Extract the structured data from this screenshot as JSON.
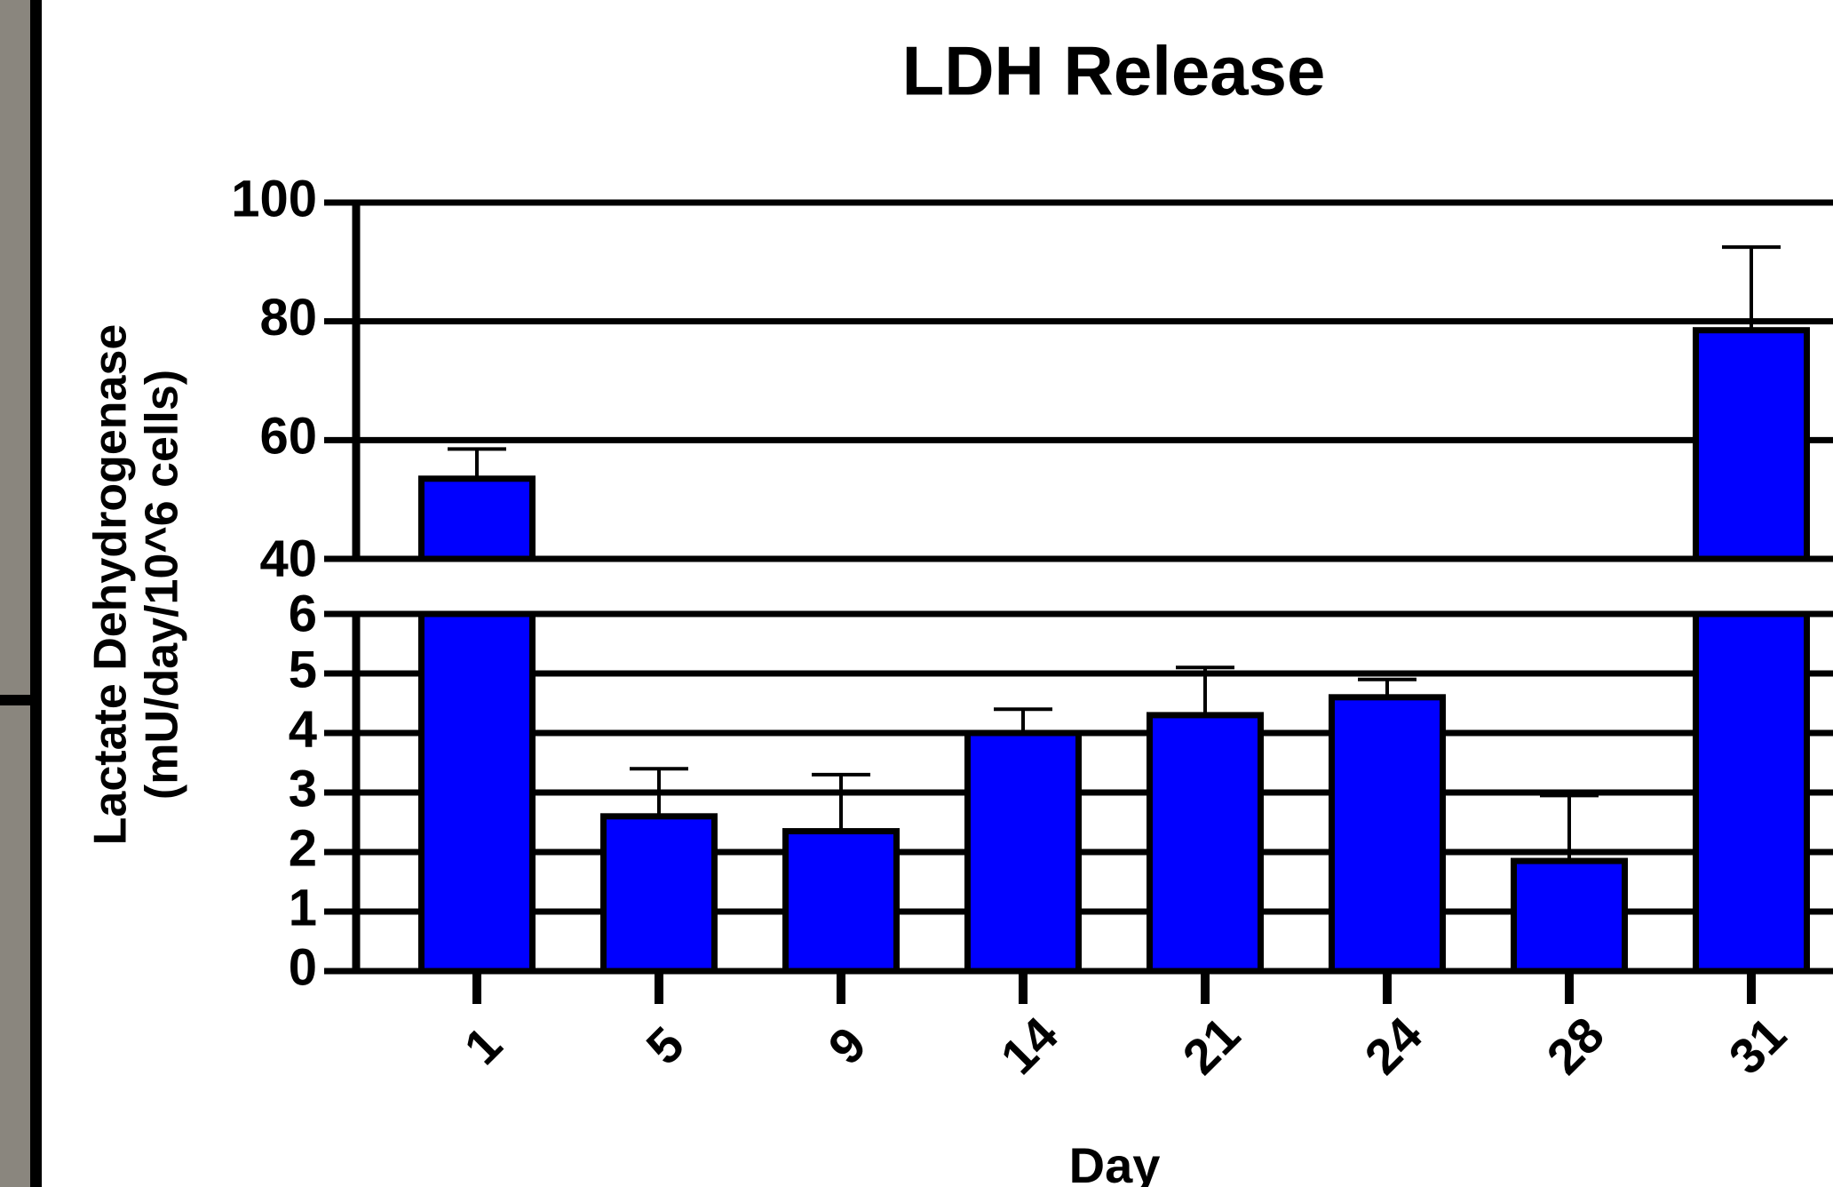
{
  "chart_data": {
    "type": "bar",
    "title": "LDH Release",
    "x_label": "Day",
    "y_label": [
      "Lactate Dehydrogenase",
      "(mU/day/10^6 cells)"
    ],
    "categories": [
      "1",
      "5",
      "9",
      "14",
      "21",
      "24",
      "28",
      "31"
    ],
    "values": [
      53.5,
      2.6,
      2.35,
      4.0,
      4.3,
      4.6,
      1.85,
      78.5
    ],
    "errors": [
      5.0,
      0.8,
      0.95,
      0.4,
      0.8,
      0.3,
      1.1,
      14.0
    ],
    "color": "#0000ff",
    "axis_segments": [
      {
        "ylim": [
          0,
          6
        ],
        "yticks": [
          0,
          1,
          2,
          3,
          4,
          5,
          6
        ]
      },
      {
        "ylim": [
          40,
          100
        ],
        "yticks": [
          40,
          60,
          80,
          100
        ]
      }
    ],
    "grid": true
  }
}
